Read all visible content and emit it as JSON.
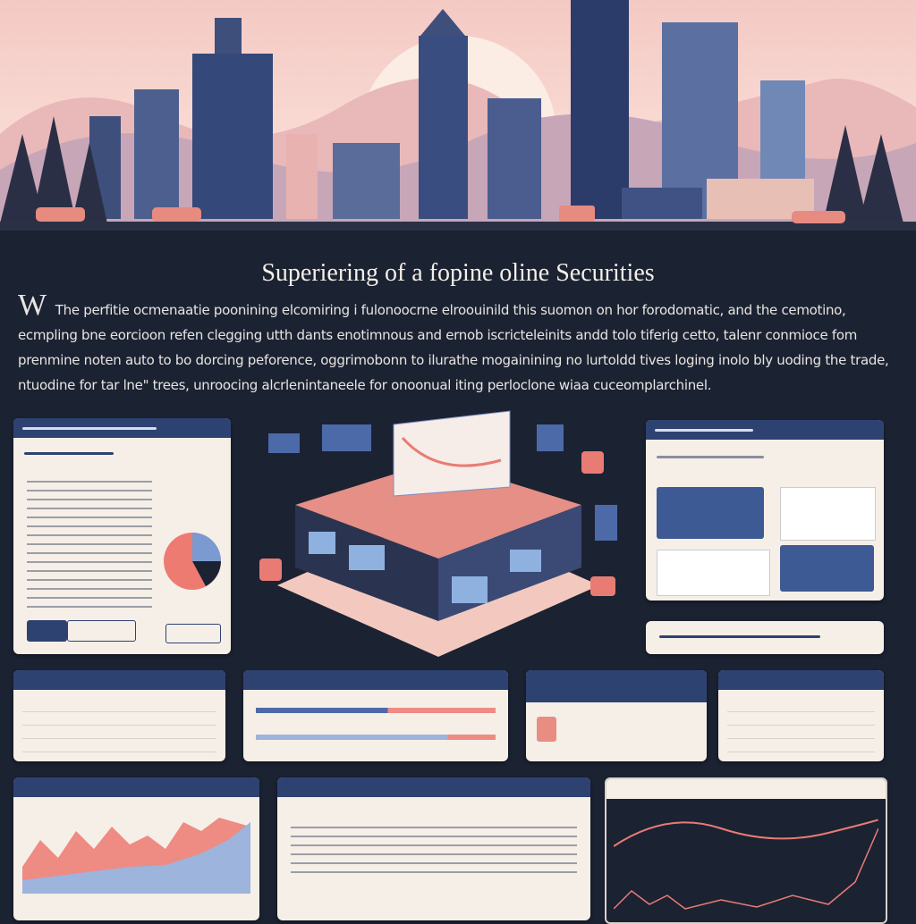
{
  "header": {
    "title": "Superiering of a fopine oline Securities"
  },
  "intro": {
    "dropcap": "W",
    "text": "The perfitie ocmenaatie poonining elcomiring i fulonoocrne elroouinild this suomon on hor forodomatic, and the cemotino, ecmpling bne eorcioon refen clegging utth dants enotimnous and ernob iscricteleinits andd tolo tiferig cetto, talenr conmioce fom prenmine noten auto to bo dorcing peforence, oggrimobonn to ilurathe mogainining no lurtoldd tives loging inolo bly uoding the trade, ntuodine for tar lne\" trees, unroocing alcrlenintaneele for onoonual iting perloclone wiaa cuceomplarchinel."
  }
}
